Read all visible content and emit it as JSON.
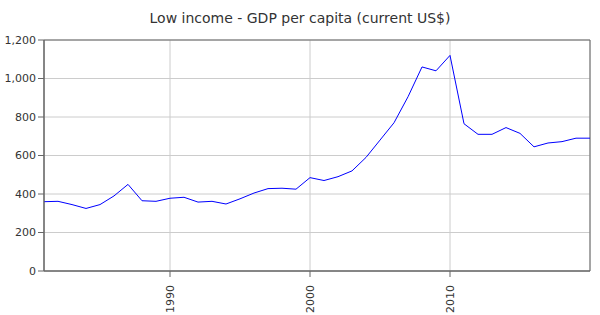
{
  "chart_data": {
    "type": "line",
    "title": "Low income - GDP per capita (current US$)",
    "x": [
      1981,
      1982,
      1983,
      1984,
      1985,
      1986,
      1987,
      1988,
      1989,
      1990,
      1991,
      1992,
      1993,
      1994,
      1995,
      1996,
      1997,
      1998,
      1999,
      2000,
      2001,
      2002,
      2003,
      2004,
      2005,
      2006,
      2007,
      2008,
      2009,
      2010,
      2011,
      2012,
      2013,
      2014,
      2015,
      2016,
      2017,
      2018,
      2019,
      2020
    ],
    "values": [
      360,
      362,
      345,
      325,
      345,
      390,
      450,
      365,
      362,
      378,
      383,
      358,
      362,
      348,
      375,
      405,
      428,
      430,
      425,
      485,
      470,
      490,
      520,
      590,
      680,
      770,
      905,
      1060,
      1040,
      1120,
      765,
      710,
      710,
      745,
      715,
      645,
      665,
      672,
      690,
      690
    ],
    "color": "#0000ff",
    "xlim": [
      1981,
      2020
    ],
    "xticks": [
      1990,
      2000,
      2010
    ],
    "ylim": [
      0,
      1200
    ],
    "yticks": [
      0,
      200,
      400,
      600,
      800,
      {
        "value": 1000,
        "label": "1,000"
      },
      {
        "value": 1200,
        "label": "1,200"
      }
    ],
    "grid": true
  }
}
